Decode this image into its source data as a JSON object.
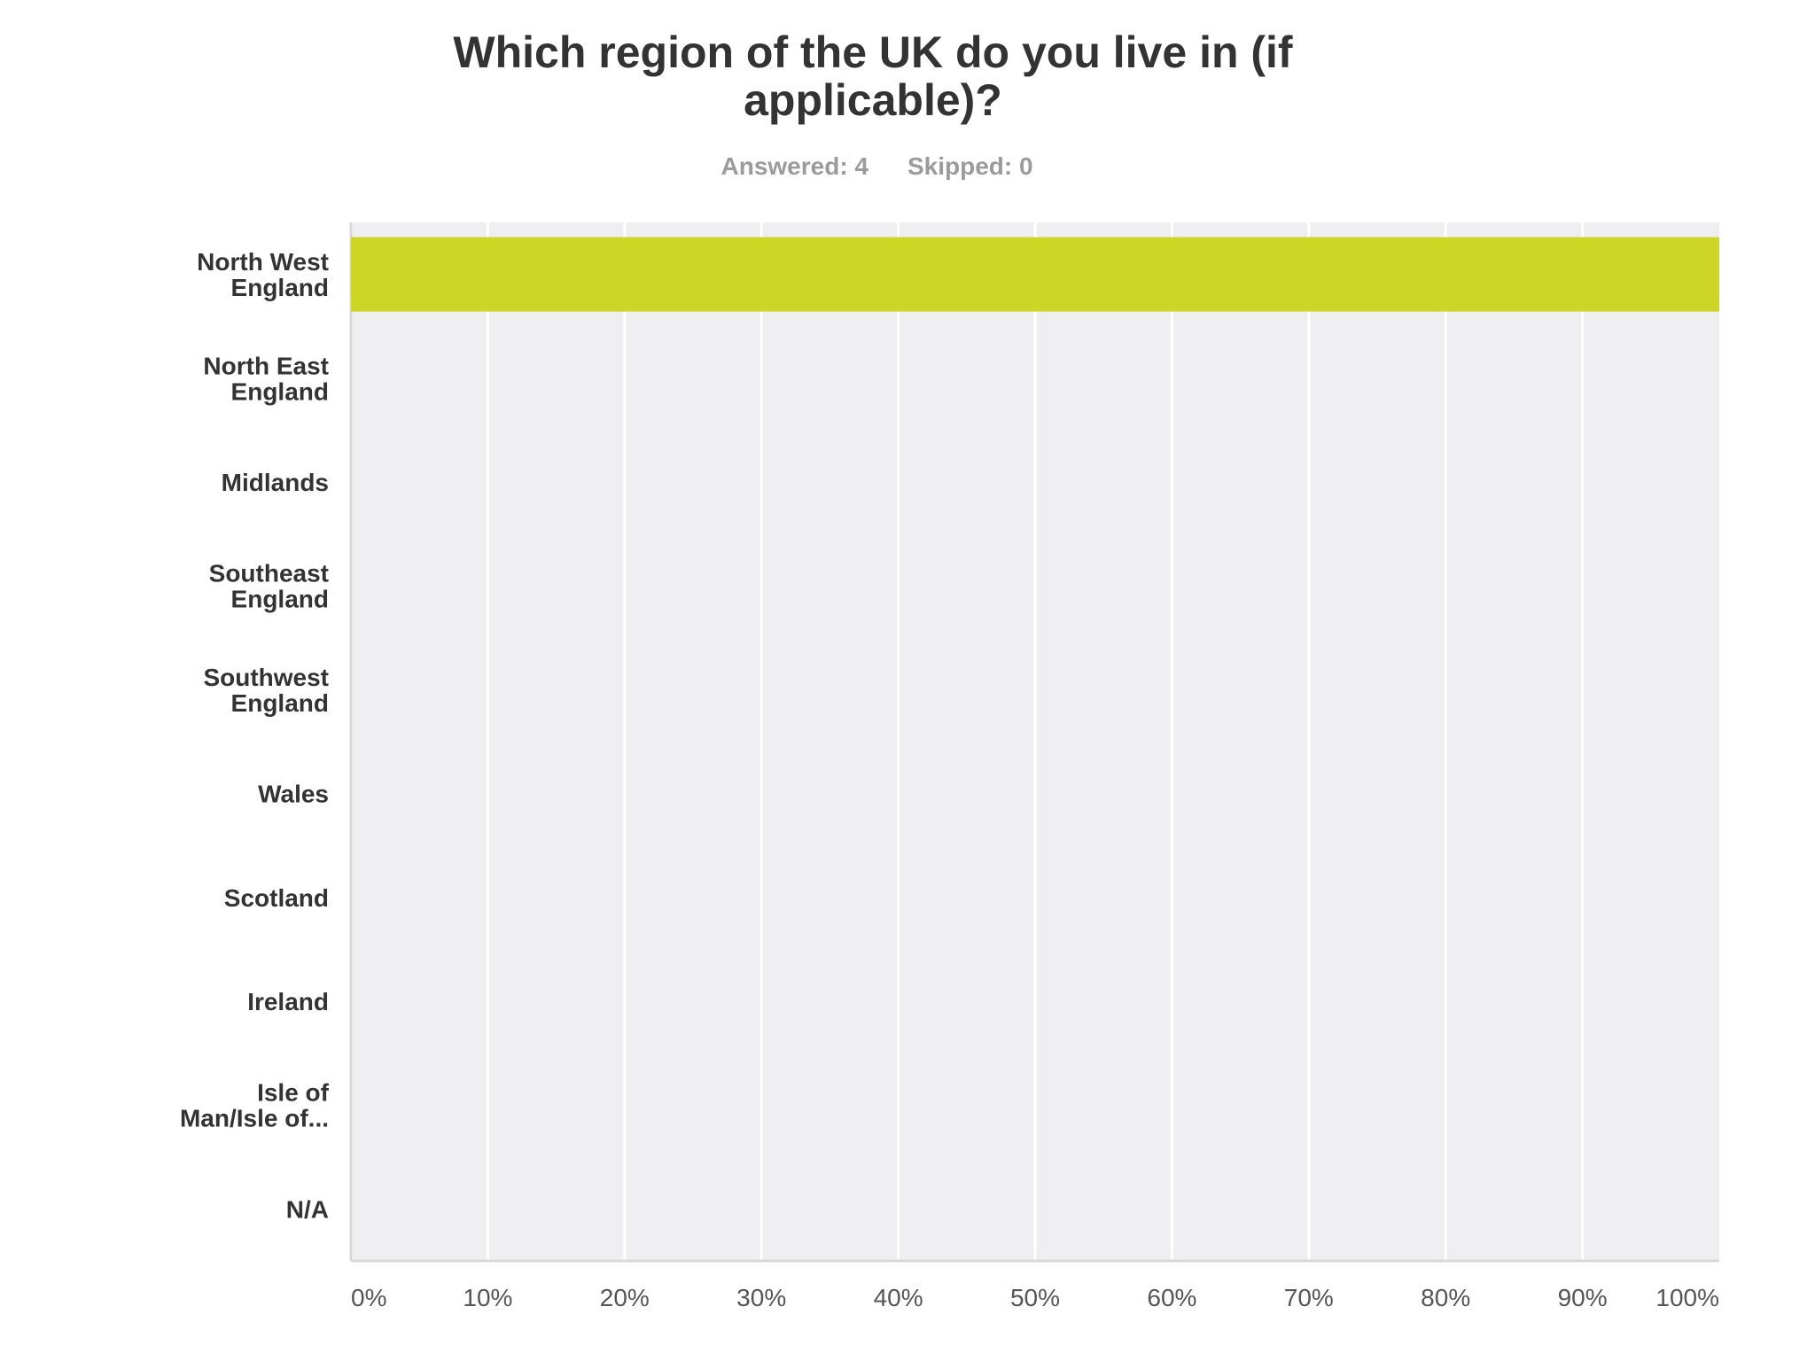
{
  "title_lines": [
    "Which region of the UK do you live in (if",
    "applicable)?"
  ],
  "answered": "Answered: 4",
  "skipped": "Skipped: 0",
  "colors": {
    "bar": "#cdd624",
    "plot_bg": "#efeff1",
    "grid": "#ffffff",
    "axis": "#d8d8d8"
  },
  "chart_data": {
    "type": "bar",
    "orientation": "horizontal",
    "title": "Which region of the UK do you live in (if applicable)?",
    "categories": [
      [
        "North West",
        "England"
      ],
      [
        "North East",
        "England"
      ],
      [
        "Midlands"
      ],
      [
        "Southeast",
        "England"
      ],
      [
        "Southwest",
        "England"
      ],
      [
        "Wales"
      ],
      [
        "Scotland"
      ],
      [
        "Ireland"
      ],
      [
        "Isle of",
        "Man/Isle of..."
      ],
      [
        "N/A"
      ]
    ],
    "values": [
      100,
      0,
      0,
      0,
      0,
      0,
      0,
      0,
      0,
      0
    ],
    "xlim": [
      0,
      100
    ],
    "xticks": [
      "0%",
      "10%",
      "20%",
      "30%",
      "40%",
      "50%",
      "60%",
      "70%",
      "80%",
      "90%",
      "100%"
    ],
    "grid": true,
    "legend": "none"
  }
}
